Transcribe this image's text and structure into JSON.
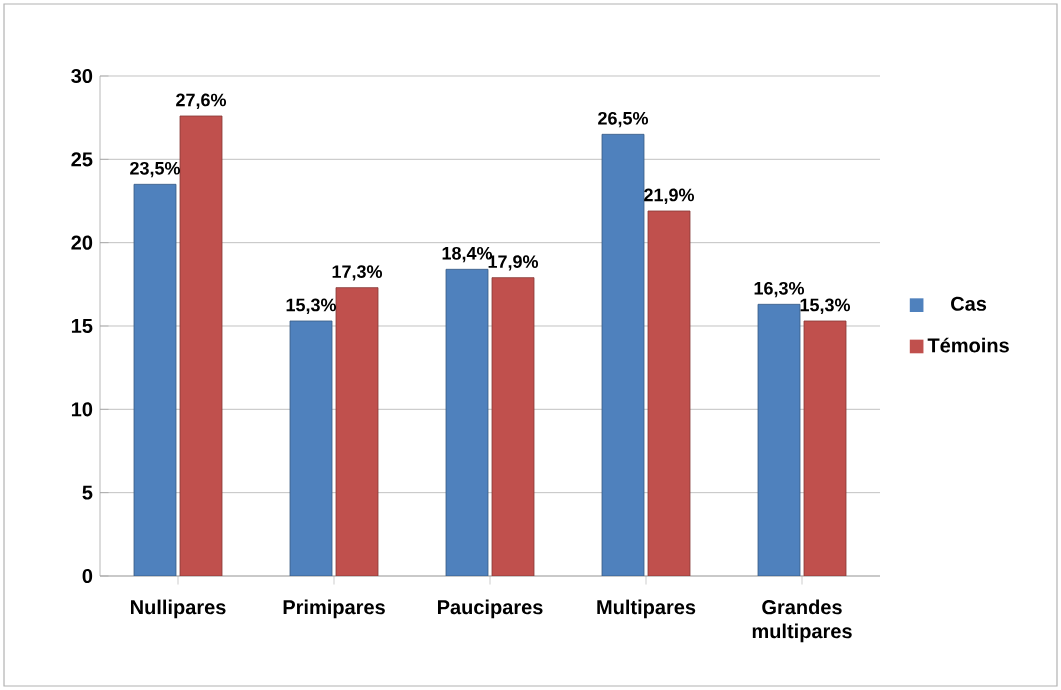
{
  "chart_data": {
    "type": "bar",
    "categories": [
      "Nullipares",
      "Primipares",
      "Paucipares",
      "Multipares",
      "Grandes multipares"
    ],
    "series": [
      {
        "name": "Cas",
        "color": "#4f81bd",
        "values": [
          23.5,
          15.3,
          18.4,
          26.5,
          16.3
        ],
        "value_labels": [
          "23,5%",
          "15,3%",
          "18,4%",
          "26,5%",
          "16,3%"
        ]
      },
      {
        "name": "Témoins",
        "color": "#c0504d",
        "values": [
          27.6,
          17.3,
          17.9,
          21.9,
          15.3
        ],
        "value_labels": [
          "27,6%",
          "17,3%",
          "17,9%",
          "21,9%",
          "15,3%"
        ]
      }
    ],
    "ylim": [
      0,
      30
    ],
    "yticks": [
      0,
      5,
      10,
      15,
      20,
      25,
      30
    ],
    "grid": "y",
    "legend": "right"
  }
}
